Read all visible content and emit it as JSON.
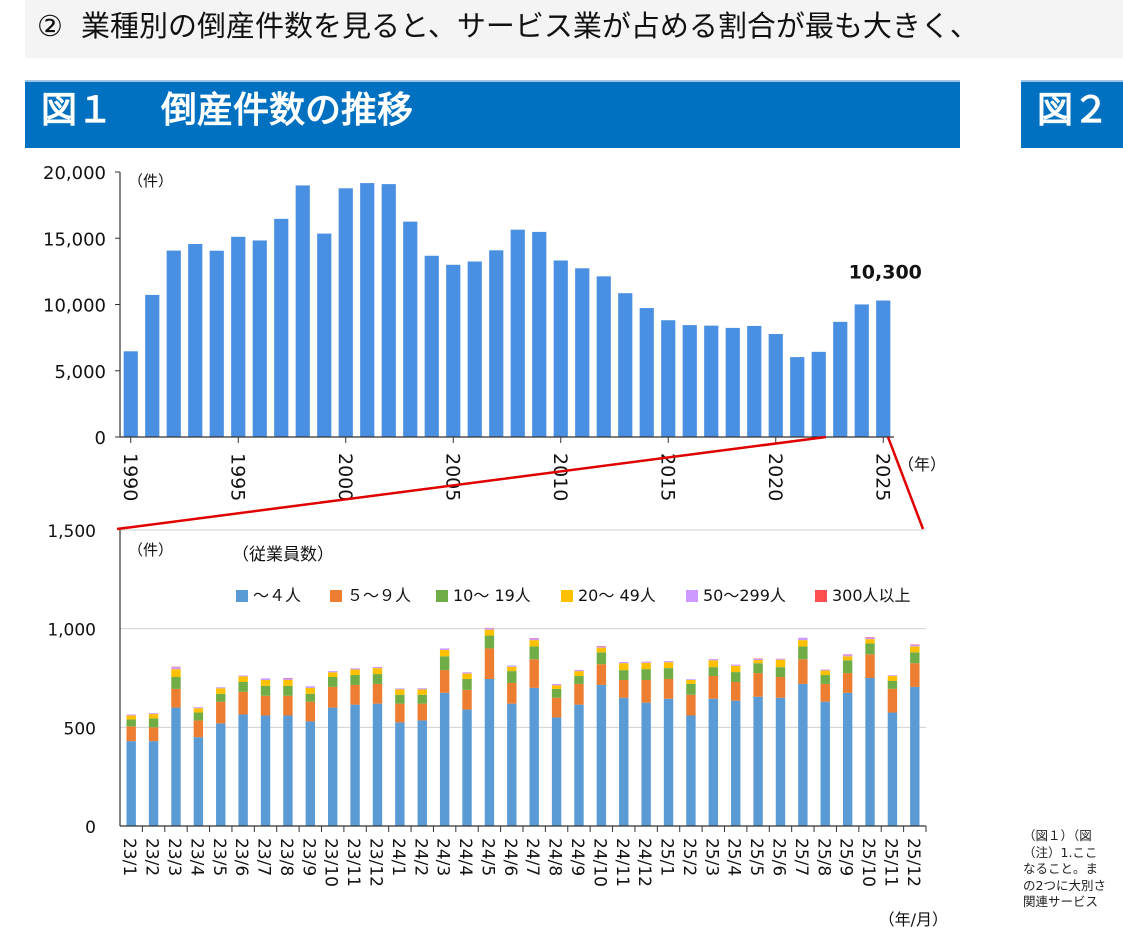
{
  "header": {
    "circled_num": "②",
    "text": "業種別の倒産件数を見ると、サービス業が占める割合が最も大きく、"
  },
  "fig1": {
    "label": "図１",
    "title": "倒産件数の推移"
  },
  "fig2": {
    "label": "図２"
  },
  "note": {
    "lines": [
      "（図１）（図",
      "（注）1.ここ",
      "なること。ま",
      "の2つに大別さ",
      "関連サービス"
    ]
  },
  "chart_data": [
    {
      "type": "bar",
      "unit_label": "（件）",
      "x_unit": "（年）",
      "x": [
        1990,
        1991,
        1992,
        1993,
        1994,
        1995,
        1996,
        1997,
        1998,
        1999,
        2000,
        2001,
        2002,
        2003,
        2004,
        2005,
        2006,
        2007,
        2008,
        2009,
        2010,
        2011,
        2012,
        2013,
        2014,
        2015,
        2016,
        2017,
        2018,
        2019,
        2020,
        2021,
        2022,
        2023,
        2024,
        2025
      ],
      "xticks": [
        "1990",
        "1995",
        "2000",
        "2005",
        "2010",
        "2015",
        "2020",
        "2025"
      ],
      "values": [
        6468,
        10723,
        14069,
        14564,
        14061,
        15108,
        14834,
        16464,
        18988,
        15352,
        18769,
        19164,
        19087,
        16255,
        13679,
        12998,
        13245,
        14091,
        15646,
        15480,
        13321,
        12734,
        12124,
        10855,
        9731,
        8812,
        8446,
        8405,
        8235,
        8383,
        7773,
        6030,
        6428,
        8690,
        10006,
        10300
      ],
      "annotation": "10,300",
      "ylim": [
        0,
        20000
      ],
      "yticks": [
        "0",
        "5,000",
        "10,000",
        "15,000",
        "20,000"
      ],
      "colors": {
        "bar": "#4a90e2"
      }
    },
    {
      "type": "bar",
      "stacked": true,
      "unit_label": "（件）",
      "legend_title": "（従業員数）",
      "x_unit": "（年/月）",
      "categories": [
        "23/1",
        "23/2",
        "23/3",
        "23/4",
        "23/5",
        "23/6",
        "23/7",
        "23/8",
        "23/9",
        "23/10",
        "23/11",
        "23/12",
        "24/1",
        "24/2",
        "24/3",
        "24/4",
        "24/5",
        "24/6",
        "24/7",
        "24/8",
        "24/9",
        "24/10",
        "24/11",
        "24/12",
        "25/1",
        "25/2",
        "25/3",
        "25/4",
        "25/5",
        "25/6",
        "25/7",
        "25/8",
        "25/9",
        "25/10",
        "25/11",
        "25/12"
      ],
      "series": [
        {
          "name": "～４人",
          "color": "#5b9bd5",
          "values": [
            430,
            430,
            600,
            450,
            520,
            565,
            560,
            560,
            530,
            600,
            615,
            620,
            525,
            535,
            675,
            590,
            745,
            620,
            700,
            550,
            615,
            715,
            650,
            625,
            645,
            560,
            645,
            635,
            655,
            650,
            720,
            630,
            675,
            750,
            575,
            705
          ]
        },
        {
          "name": "５～９人",
          "color": "#ed7d31",
          "values": [
            75,
            70,
            95,
            85,
            110,
            115,
            100,
            100,
            100,
            105,
            100,
            100,
            95,
            85,
            115,
            100,
            155,
            105,
            145,
            100,
            105,
            105,
            90,
            115,
            100,
            105,
            115,
            95,
            120,
            105,
            125,
            90,
            100,
            120,
            120,
            120
          ]
        },
        {
          "name": "10～ 19人",
          "color": "#70ad47",
          "values": [
            35,
            45,
            60,
            40,
            40,
            50,
            50,
            50,
            40,
            50,
            50,
            50,
            45,
            45,
            70,
            55,
            65,
            60,
            65,
            45,
            40,
            60,
            50,
            55,
            55,
            55,
            45,
            50,
            50,
            50,
            65,
            45,
            65,
            55,
            40,
            55
          ]
        },
        {
          "name": "20～ 49人",
          "color": "#ffc000",
          "values": [
            20,
            22,
            40,
            22,
            28,
            28,
            30,
            30,
            30,
            24,
            28,
            30,
            27,
            27,
            32,
            28,
            30,
            22,
            32,
            18,
            25,
            24,
            35,
            32,
            30,
            20,
            35,
            32,
            16,
            38,
            32,
            23,
            20,
            22,
            25,
            30
          ]
        },
        {
          "name": "50～299人",
          "color": "#cc99ff",
          "values": [
            5,
            5,
            10,
            5,
            5,
            5,
            8,
            8,
            8,
            6,
            6,
            6,
            5,
            6,
            8,
            6,
            8,
            6,
            8,
            7,
            6,
            6,
            6,
            6,
            6,
            4,
            6,
            6,
            6,
            5,
            12,
            5,
            8,
            8,
            4,
            8
          ]
        },
        {
          "name": "300人以上",
          "color": "#ff5050",
          "values": [
            0,
            0,
            2,
            0,
            0,
            0,
            0,
            2,
            0,
            0,
            0,
            0,
            0,
            0,
            0,
            0,
            1,
            0,
            2,
            0,
            0,
            2,
            0,
            0,
            0,
            0,
            0,
            0,
            2,
            0,
            0,
            0,
            2,
            2,
            0,
            2
          ]
        }
      ],
      "ylim": [
        0,
        1500
      ],
      "yticks": [
        "0",
        "500",
        "1,000",
        "1,500"
      ],
      "grid": true,
      "legend_position": "top"
    }
  ]
}
